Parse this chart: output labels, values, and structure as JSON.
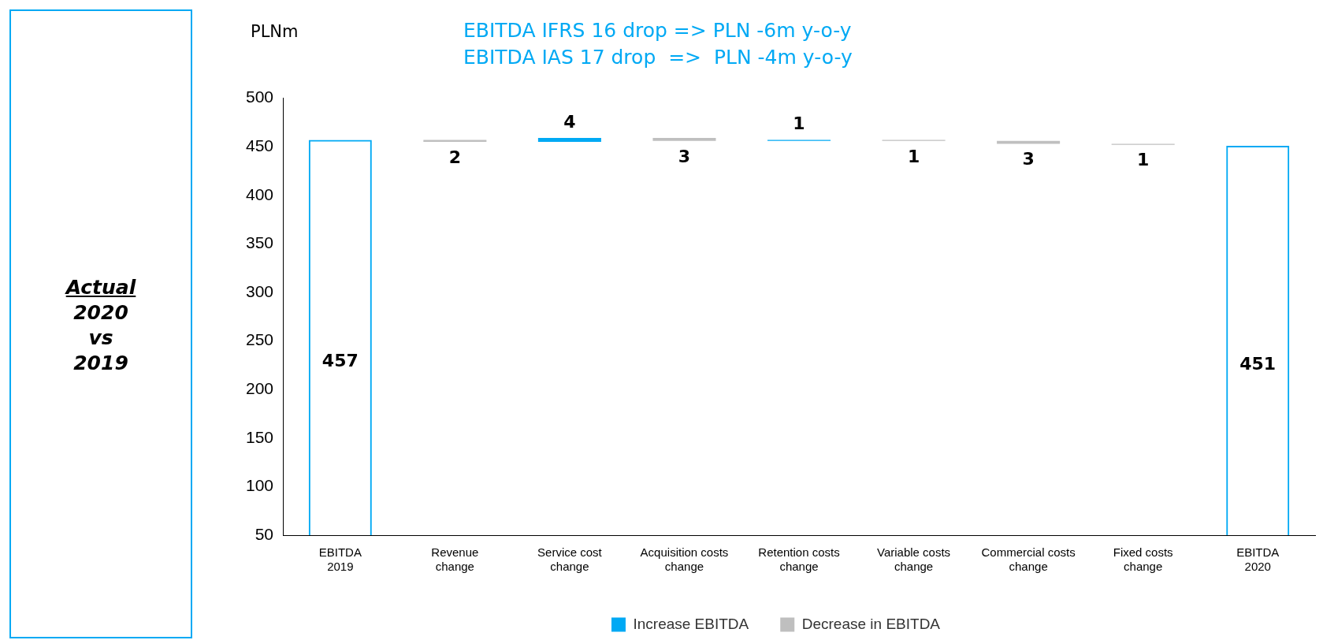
{
  "chart_data": {
    "type": "bar",
    "title": "EBITDA IFRS 16 drop => PLN -6m y-o-y",
    "subtitle": "EBITDA IAS 17 drop  =>  PLN -4m y-o-y",
    "ylabel": "PLNm",
    "annotations": [
      "Actual",
      "2020",
      "vs",
      "2019"
    ],
    "categories": [
      "EBITDA 2019",
      "Revenue change",
      "Service cost change",
      "Acquisition costs change",
      "Retention costs change",
      "Variable costs change",
      "Commercial costs change",
      "Fixed costs change",
      "EBITDA 2020"
    ],
    "series": [
      {
        "color": "#00a9f4",
        "values": [
          457,
          null,
          null,
          null,
          null,
          null,
          null,
          null,
          451
        ],
        "value_labels": [
          "457",
          null,
          null,
          null,
          null,
          null,
          null,
          null,
          "451"
        ]
      },
      {
        "name": "Increase EBITDA",
        "color": "#00a9f4",
        "values": [
          null,
          null,
          4,
          null,
          1,
          null,
          null,
          null,
          null
        ],
        "base": [
          null,
          null,
          455,
          null,
          456,
          null,
          null,
          null,
          null
        ],
        "value_labels": [
          null,
          null,
          "4",
          null,
          "1",
          null,
          null,
          null,
          null
        ]
      },
      {
        "name": "Decrease in EBITDA",
        "color": "#bfbfbf",
        "values": [
          null,
          -2,
          null,
          -3,
          null,
          -1,
          -3,
          -1,
          null
        ],
        "base": [
          null,
          457,
          null,
          459,
          null,
          457,
          456,
          453,
          null
        ],
        "value_labels": [
          null,
          "2",
          null,
          "3",
          null,
          "1",
          "3",
          "1",
          null
        ]
      }
    ],
    "ylim": [
      50,
      500
    ],
    "yticks": [
      50,
      100,
      150,
      200,
      250,
      300,
      350,
      400,
      450,
      500
    ],
    "grid": false,
    "legend": "bottom"
  }
}
